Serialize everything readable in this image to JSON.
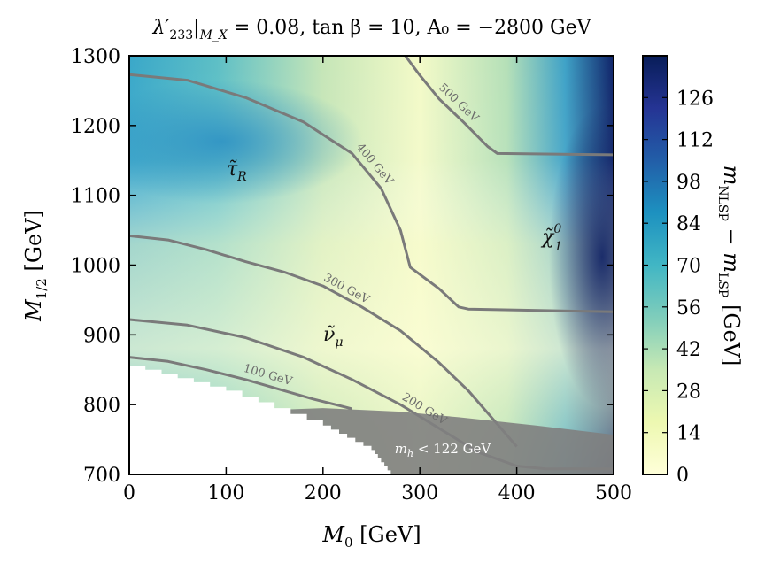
{
  "chart_data": {
    "type": "heatmap",
    "title": "λ′₂₃₃|_{M_X} = 0.08, tan β = 10, A₀ = −2800 GeV",
    "title_parts": {
      "coupling": "λ′",
      "coupling_sub": "233",
      "scale": "|",
      "scale_sub": "M_X",
      "rest": " = 0.08, tan β = 10, A₀ = −2800 GeV"
    },
    "xlabel": "M₀ [GeV]",
    "xlabel_parts": {
      "sym": "M",
      "sub": "0",
      "unit": " [GeV]"
    },
    "ylabel": "M₁/₂ [GeV]",
    "ylabel_parts": {
      "sym": "M",
      "sub": "1/2",
      "unit": " [GeV]"
    },
    "xlim": [
      0,
      500
    ],
    "ylim": [
      700,
      1300
    ],
    "x_ticks": [
      "0",
      "100",
      "200",
      "300",
      "400",
      "500"
    ],
    "y_ticks": [
      "700",
      "800",
      "900",
      "1000",
      "1100",
      "1200",
      "1300"
    ],
    "colorbar": {
      "label": "m_NLSP − m_LSP [GeV]",
      "label_parts": {
        "sym": "m",
        "sub1": "NLSP",
        "mid": " − m",
        "sub2": "LSP",
        "unit": " [GeV]"
      },
      "range": [
        0,
        140
      ],
      "ticks": [
        "0",
        "14",
        "28",
        "42",
        "56",
        "70",
        "84",
        "98",
        "112",
        "126"
      ],
      "colors": [
        "#ffffd9",
        "#edf8b1",
        "#c7e9b4",
        "#7fcdbb",
        "#41b6c4",
        "#1d91c0",
        "#225ea8",
        "#253494",
        "#081d58"
      ]
    },
    "contours": [
      {
        "label": "100 GeV",
        "points": [
          [
            0,
            868
          ],
          [
            40,
            862
          ],
          [
            80,
            850
          ],
          [
            120,
            836
          ],
          [
            160,
            820
          ],
          [
            190,
            808
          ],
          [
            230,
            794
          ]
        ]
      },
      {
        "label": "200 GeV",
        "points": [
          [
            0,
            922
          ],
          [
            60,
            914
          ],
          [
            120,
            896
          ],
          [
            180,
            868
          ],
          [
            230,
            836
          ],
          [
            280,
            800
          ],
          [
            320,
            766
          ],
          [
            360,
            732
          ],
          [
            400,
            712
          ],
          [
            430,
            708
          ],
          [
            500,
            708
          ]
        ]
      },
      {
        "label": "300 GeV",
        "points": [
          [
            0,
            1042
          ],
          [
            40,
            1036
          ],
          [
            80,
            1022
          ],
          [
            120,
            1005
          ],
          [
            160,
            990
          ],
          [
            200,
            970
          ],
          [
            240,
            940
          ],
          [
            280,
            906
          ],
          [
            320,
            860
          ],
          [
            350,
            820
          ],
          [
            380,
            772
          ],
          [
            400,
            740
          ]
        ]
      },
      {
        "label": "400 GeV",
        "points": [
          [
            0,
            1273
          ],
          [
            60,
            1265
          ],
          [
            120,
            1240
          ],
          [
            180,
            1205
          ],
          [
            230,
            1160
          ],
          [
            260,
            1110
          ],
          [
            280,
            1050
          ],
          [
            290,
            997
          ],
          [
            320,
            966
          ],
          [
            340,
            940
          ],
          [
            350,
            937
          ],
          [
            500,
            933
          ]
        ]
      },
      {
        "label": "500 GeV",
        "points": [
          [
            285,
            1300
          ],
          [
            300,
            1272
          ],
          [
            320,
            1238
          ],
          [
            345,
            1205
          ],
          [
            370,
            1170
          ],
          [
            380,
            1160
          ],
          [
            500,
            1158
          ]
        ]
      }
    ],
    "regions": [
      {
        "label": "τ̃_R",
        "base": "τ̃",
        "sub": "R"
      },
      {
        "label": "ν̃_μ",
        "base": "ν̃",
        "sub": "μ"
      },
      {
        "label": "χ̃⁰₁",
        "base": "χ̃",
        "sup": "0",
        "sub": "1"
      }
    ],
    "excluded": {
      "label": "m_h < 122 GeV",
      "label_parts": {
        "sym": "m",
        "sub": "h",
        "rest": " < 122 GeV"
      },
      "boundary": [
        [
          0,
          788
        ],
        [
          100,
          790
        ],
        [
          200,
          795
        ],
        [
          280,
          790
        ],
        [
          340,
          782
        ],
        [
          420,
          770
        ],
        [
          500,
          757
        ]
      ]
    },
    "no_data_boundary": [
      [
        0,
        856
      ],
      [
        100,
        820
      ],
      [
        200,
        770
      ],
      [
        250,
        735
      ],
      [
        270,
        700
      ]
    ]
  }
}
